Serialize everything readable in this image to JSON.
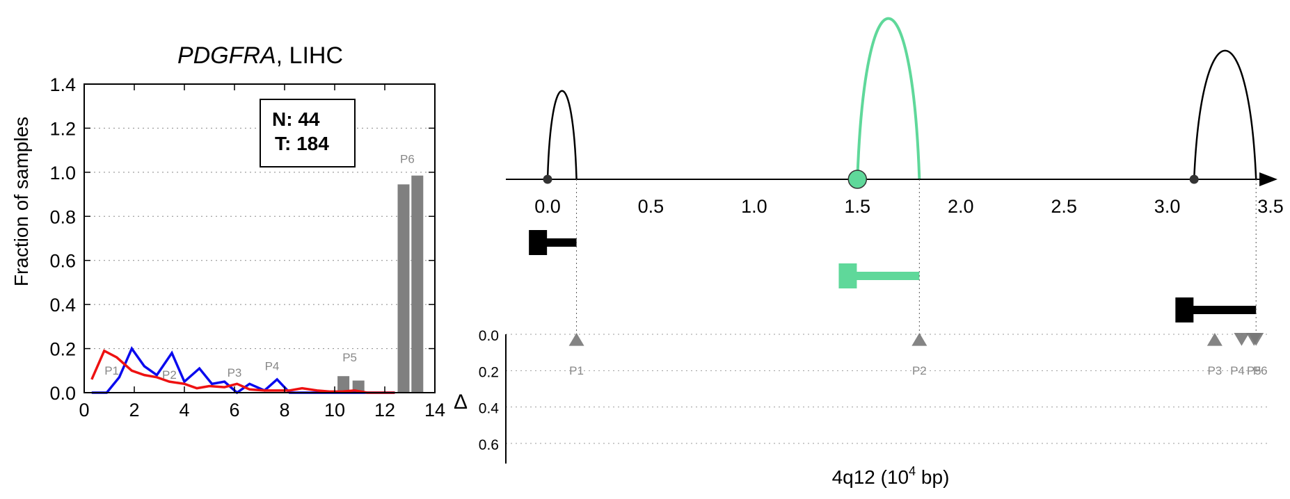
{
  "colors": {
    "normal": "#0a0aee",
    "tumor": "#ee1111",
    "peak": "#808080",
    "isoform_main": "#000000",
    "isoform_highlight": "#5fd89a"
  },
  "chart_data": [
    {
      "type": "line",
      "title_italic": "PDGFRA",
      "title_rest": ", LIHC",
      "ylabel": "Fraction of samples",
      "xlim": [
        0,
        14
      ],
      "ylim": [
        0,
        1.4
      ],
      "x_ticks": [
        "0",
        "2",
        "4",
        "6",
        "8",
        "10",
        "12",
        "14"
      ],
      "y_ticks": [
        "0.0",
        "0.2",
        "0.4",
        "0.6",
        "0.8",
        "1.0",
        "1.2",
        "1.4"
      ],
      "grid": "horizontal dotted",
      "legend_box": {
        "line1": "N: 44",
        "line2": "T: 184",
        "placement": "top-right"
      },
      "series": [
        {
          "key": "normal",
          "x": [
            0.3,
            0.9,
            1.4,
            1.9,
            2.4,
            2.9,
            3.5,
            4.0,
            4.6,
            5.1,
            5.6,
            6.1,
            6.6,
            7.2,
            7.7,
            8.2,
            8.7,
            9.3,
            9.8,
            10.3,
            10.8,
            11.3,
            11.9,
            12.4
          ],
          "y": [
            0.0,
            0.0,
            0.07,
            0.2,
            0.12,
            0.08,
            0.18,
            0.05,
            0.11,
            0.04,
            0.05,
            0.0,
            0.04,
            0.01,
            0.06,
            0.0,
            0.0,
            0.0,
            0.0,
            0.0,
            0.0,
            0.0,
            0.0,
            0.0
          ]
        },
        {
          "key": "tumor",
          "x": [
            0.3,
            0.8,
            1.3,
            1.9,
            2.4,
            2.9,
            3.4,
            4.0,
            4.5,
            5.0,
            5.6,
            6.1,
            6.6,
            7.2,
            7.7,
            8.2,
            8.7,
            9.3,
            9.8,
            10.3,
            10.8,
            11.3,
            11.9,
            12.4
          ],
          "y": [
            0.06,
            0.19,
            0.16,
            0.1,
            0.08,
            0.07,
            0.05,
            0.04,
            0.02,
            0.03,
            0.025,
            0.04,
            0.015,
            0.01,
            0.01,
            0.01,
            0.02,
            0.01,
            0.005,
            0.005,
            0.01,
            0.0,
            0.0,
            0.0
          ]
        }
      ],
      "bars": [
        {
          "x": 10.35,
          "value": 0.075
        },
        {
          "x": 10.95,
          "value": 0.055
        },
        {
          "x": 12.75,
          "value": 0.945
        },
        {
          "x": 13.3,
          "value": 0.985
        }
      ],
      "peak_labels": [
        {
          "text": "P1",
          "x": 1.1,
          "y": 0.07
        },
        {
          "text": "P2",
          "x": 3.4,
          "y": 0.05
        },
        {
          "text": "P3",
          "x": 6.0,
          "y": 0.06
        },
        {
          "text": "P4",
          "x": 7.5,
          "y": 0.09
        },
        {
          "text": "P5",
          "x": 10.6,
          "y": 0.13
        },
        {
          "text": "P6",
          "x": 12.9,
          "y": 1.03
        }
      ]
    },
    {
      "type": "scatter",
      "xlabel_base": "4q12 (10",
      "xlabel_sup": "4",
      "xlabel_tail": " bp)",
      "ylabel": "Δ",
      "x_ticks": [
        "0.0",
        "0.5",
        "1.0",
        "1.5",
        "2.0",
        "2.5",
        "3.0",
        "3.5"
      ],
      "y_ticks": [
        "0.0",
        "0.2",
        "0.4",
        "0.6"
      ],
      "xlim": [
        -0.2,
        3.65
      ],
      "ylim": [
        0,
        0.65
      ],
      "splice_arcs": [
        {
          "start": 0.0,
          "end": 0.14,
          "height": 0.55,
          "color_key": "isoform_main",
          "start_node": true
        },
        {
          "start": 1.5,
          "end": 1.8,
          "height": 1.0,
          "color_key": "isoform_highlight",
          "start_node": true
        },
        {
          "start": 3.13,
          "end": 3.43,
          "height": 0.8,
          "color_key": "isoform_main",
          "start_node": true
        }
      ],
      "isoforms": [
        {
          "start": -0.05,
          "end": 0.14,
          "row": 0,
          "color_key": "isoform_main"
        },
        {
          "start": 1.45,
          "end": 1.8,
          "row": 1,
          "color_key": "isoform_highlight"
        },
        {
          "start": 3.08,
          "end": 3.43,
          "row": 2,
          "color_key": "isoform_main"
        }
      ],
      "peaks": [
        {
          "label": "P1",
          "x": 0.14,
          "delta": 0.03,
          "dir": "up"
        },
        {
          "label": "P2",
          "x": 1.8,
          "delta": 0.03,
          "dir": "up"
        },
        {
          "label": "P3",
          "x": 3.23,
          "delta": 0.03,
          "dir": "up"
        },
        {
          "label": "P4",
          "x": 3.36,
          "delta": 0.03,
          "dir": "down"
        },
        {
          "label": "P5",
          "x": 3.42,
          "delta": 0.03,
          "dir": "down"
        },
        {
          "label": "P6",
          "x": 3.43,
          "delta": 0.03,
          "dir": "down"
        }
      ],
      "peak_label_text": "P1 P2 P3 P4P5P6 (P4, P5 and P6 overlap)",
      "peak_labels_drawn": [
        {
          "text": "P1",
          "x": 0.14
        },
        {
          "text": "P2",
          "x": 1.8
        },
        {
          "text": "P3",
          "x": 3.23
        },
        {
          "text": "P4",
          "x": 3.34
        },
        {
          "text": "P5",
          "x": 3.42
        },
        {
          "text": "P6",
          "x": 3.45
        }
      ]
    }
  ]
}
